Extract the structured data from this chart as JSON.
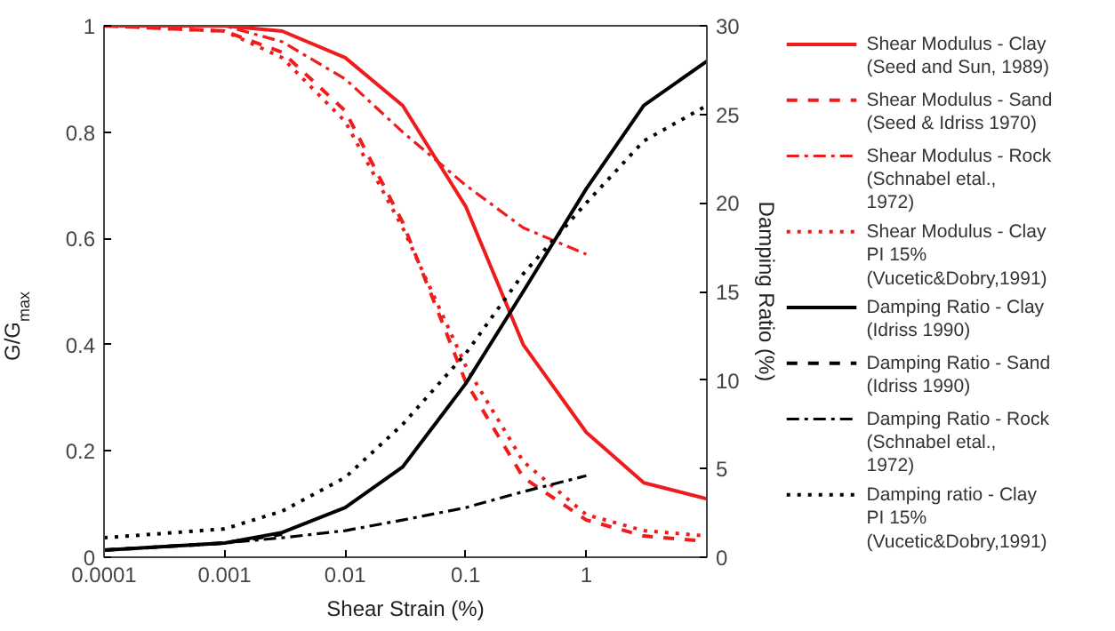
{
  "chart_data": {
    "type": "line",
    "xlabel": "Shear Strain (%)",
    "ylabel": "G/G$_{max}$",
    "y2label": "Damping Ratio (%)",
    "log": "x",
    "xlim": [
      0.0001,
      10
    ],
    "xticks": [
      0.0001,
      0.001,
      0.01,
      0.1,
      1
    ],
    "ylim": [
      0,
      1
    ],
    "yticks": [
      0,
      0.2,
      0.4,
      0.6,
      0.8,
      1
    ],
    "y2lim": [
      0,
      30
    ],
    "y2ticks": [
      0,
      5,
      10,
      15,
      20,
      25,
      30
    ],
    "grid": false,
    "legend": "right",
    "x": [
      0.0001,
      0.001,
      0.003,
      0.01,
      0.03,
      0.1,
      0.3,
      1,
      3,
      10
    ],
    "series": [
      {
        "name": "Shear Modulus - Clay (Seed and Sun, 1989)",
        "color": "#ee1c1c",
        "line_style": "solid",
        "values": [
          1,
          1,
          0.99,
          0.94,
          0.85,
          0.66,
          0.4,
          0.235,
          0.14,
          0.11
        ]
      },
      {
        "name": "Shear Modulus - Sand (Seed & Idriss 1970)",
        "color": "#ee1c1c",
        "line_style": "dashed",
        "values": [
          1,
          0.99,
          0.95,
          0.84,
          0.63,
          0.33,
          0.15,
          0.07,
          0.04,
          0.03
        ]
      },
      {
        "name": "Shear Modulus - Rock (Schnabel etal., 1972)",
        "color": "#ee1c1c",
        "line_style": "dashdot",
        "values": [
          1,
          1,
          0.97,
          0.9,
          0.8,
          0.7,
          0.62,
          0.57,
          null,
          null
        ]
      },
      {
        "name": "Shear Modulus - Clay PI 15% (Vucetic&Dobry,1991)",
        "color": "#ee1c1c",
        "line_style": "dotted",
        "values": [
          1,
          0.99,
          0.94,
          0.82,
          0.62,
          0.36,
          0.18,
          0.08,
          0.05,
          0.04
        ]
      },
      {
        "name": "Damping Ratio - Clay (Idriss 1990)",
        "color": "#000000",
        "line_style": "solid",
        "axis": "y2",
        "values": [
          0.4,
          0.8,
          1.4,
          2.8,
          5.1,
          9.8,
          15,
          20.8,
          25.5,
          28
        ]
      },
      {
        "name": "Damping Ratio - Sand (Idriss 1990)",
        "color": "#000000",
        "line_style": "dashed",
        "axis": "y2",
        "values": [
          0.4,
          0.8,
          1.3,
          null,
          null,
          null,
          null,
          null,
          null,
          null
        ]
      },
      {
        "name": "Damping Ratio - Rock (Schnabel etal., 1972)",
        "color": "#000000",
        "line_style": "dashdot",
        "axis": "y2",
        "values": [
          0.4,
          0.8,
          1.1,
          1.5,
          2.1,
          2.8,
          3.7,
          4.6,
          null,
          null
        ]
      },
      {
        "name": "Damping ratio - Clay PI 15% (Vucetic&Dobry,1991)",
        "color": "#000000",
        "line_style": "dotted",
        "axis": "y2",
        "values": [
          1.1,
          1.6,
          2.6,
          4.5,
          7.5,
          11.5,
          16,
          20,
          23.5,
          25.5
        ]
      }
    ]
  }
}
